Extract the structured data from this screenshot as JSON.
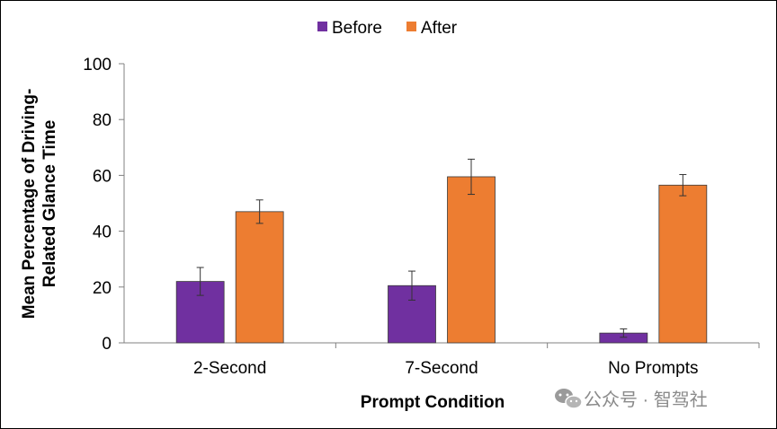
{
  "chart_data": {
    "type": "bar",
    "title": "",
    "xlabel": "Prompt Condition",
    "ylabel_lines": [
      "Mean Percentage of Driving-",
      "Related Glance Time"
    ],
    "categories": [
      "2-Second",
      "7-Second",
      "No Prompts"
    ],
    "series": [
      {
        "name": "Before",
        "color": "#7030A0",
        "values": [
          22,
          20.5,
          3.5
        ],
        "error": [
          5,
          5.2,
          1.5
        ]
      },
      {
        "name": "After",
        "color": "#ED7D31",
        "values": [
          47,
          59.5,
          56.5
        ],
        "error": [
          4.2,
          6.3,
          3.8
        ]
      }
    ],
    "ylim": [
      0,
      100
    ],
    "yticks": [
      0,
      20,
      40,
      60,
      80,
      100
    ],
    "legend_position": "top-center",
    "grid": false
  },
  "watermark": {
    "text": "公众号 · 智驾社",
    "icon": "wechat-icon"
  }
}
